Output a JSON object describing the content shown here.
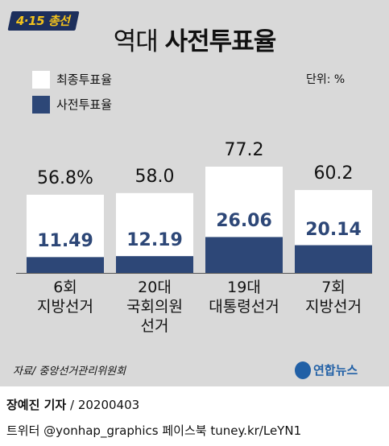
{
  "badge": "4·15 총선",
  "title_prefix": "역대",
  "title_main": "사전투표율",
  "legend": [
    {
      "label": "최종투표율",
      "color": "#ffffff"
    },
    {
      "label": "사전투표율",
      "color": "#2d4777"
    }
  ],
  "unit": "단위: %",
  "chart_data": {
    "type": "bar",
    "title": "역대 사전투표율",
    "categories": [
      "6회\n지방선거",
      "20대\n국회의원\n선거",
      "19대\n대통령선거",
      "7회\n지방선거"
    ],
    "series": [
      {
        "name": "최종투표율",
        "values": [
          56.8,
          58.0,
          77.2,
          60.2
        ],
        "labels": [
          "56.8%",
          "58.0",
          "77.2",
          "60.2"
        ],
        "color": "#ffffff"
      },
      {
        "name": "사전투표율",
        "values": [
          11.49,
          12.19,
          26.06,
          20.14
        ],
        "labels": [
          "11.49",
          "12.19",
          "26.06",
          "20.14"
        ],
        "color": "#2d4777"
      }
    ],
    "ylim": [
      0,
      100
    ],
    "grid": false,
    "legend_position": "top-left"
  },
  "source": "자료/ 중앙선거관리위원회",
  "logo": "연합뉴스",
  "byline_name": "장예진 기자",
  "byline_rest": " / 20200403",
  "social": "트위터 @yonhap_graphics  페이스북 tuney.kr/LeYN1"
}
